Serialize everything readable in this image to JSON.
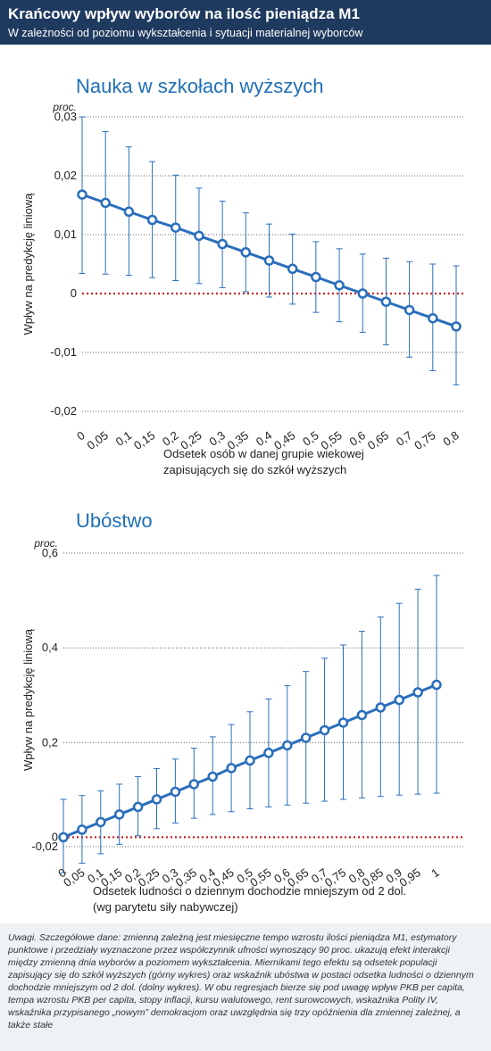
{
  "header": {
    "title": "Krańcowy wpływ wyborów na ilość pieniądza M1",
    "subtitle": "W zależności od poziomu wykształcenia i sytuacji materialnej wyborców"
  },
  "colors": {
    "header_bg": "#1f3a5f",
    "series": "#2a6ebb",
    "marker_fill": "#ffffff",
    "zero_line": "#cc2222",
    "grid": "#333333",
    "note_bg": "#eef2f5"
  },
  "chart_data": [
    {
      "type": "line",
      "title": "Nauka w szkołach wyższych",
      "unit_label": "proc.",
      "ylabel": "Wpływ na predykcję liniową",
      "xlabel_line1": "Odsetek osób w danej grupie wiekowej",
      "xlabel_line2": "zapisujących się do szkół wyższych",
      "ylim": [
        -0.02,
        0.03
      ],
      "yticks": [
        0.03,
        0.02,
        0.01,
        0,
        -0.01,
        -0.02
      ],
      "ytick_labels": [
        "0,03",
        "0,02",
        "0,01",
        "0",
        "-0,01",
        "-0,02"
      ],
      "xlim": [
        0,
        0.8
      ],
      "xticks": [
        0,
        0.05,
        0.1,
        0.15,
        0.2,
        0.25,
        0.3,
        0.35,
        0.4,
        0.45,
        0.5,
        0.55,
        0.6,
        0.65,
        0.7,
        0.75,
        0.8
      ],
      "xtick_labels": [
        "0",
        "0,05",
        "0,1",
        "0,15",
        "0,2",
        "0,25",
        "0,3",
        "0,35",
        "0,4",
        "0,45",
        "0,5",
        "0,55",
        "0,6",
        "0,65",
        "0,7",
        "0,75",
        "0,8"
      ],
      "x": [
        0,
        0.05,
        0.1,
        0.15,
        0.2,
        0.25,
        0.3,
        0.35,
        0.4,
        0.45,
        0.5,
        0.55,
        0.6,
        0.65,
        0.7,
        0.75,
        0.8
      ],
      "y": [
        0.0168,
        0.0154,
        0.0139,
        0.0125,
        0.0112,
        0.0098,
        0.0084,
        0.007,
        0.0056,
        0.0042,
        0.0028,
        0.0014,
        0.0,
        -0.0014,
        -0.0028,
        -0.0042,
        -0.0056
      ],
      "lower": [
        0.0034,
        0.0033,
        0.0031,
        0.0027,
        0.0022,
        0.0017,
        0.001,
        0.0003,
        -0.0006,
        -0.0018,
        -0.0032,
        -0.0048,
        -0.0066,
        -0.0087,
        -0.0108,
        -0.0131,
        -0.0155
      ],
      "upper": [
        0.03,
        0.0275,
        0.0249,
        0.0224,
        0.0201,
        0.0179,
        0.0157,
        0.0137,
        0.0118,
        0.0101,
        0.0088,
        0.0076,
        0.0067,
        0.006,
        0.0054,
        0.005,
        0.0047
      ],
      "grid": true,
      "zero_line": true
    },
    {
      "type": "line",
      "title": "Ubóstwo",
      "unit_label": "proc.",
      "ylabel": "Wpływ na predykcję liniową",
      "xlabel_line1": "Odsetek ludności o dziennym dochodzie mniejszym od 2 dol.",
      "xlabel_line2": "(wg parytetu siły nabywczej)",
      "ylim": [
        -0.02,
        0.6
      ],
      "yticks": [
        0.6,
        0.4,
        0.2,
        0,
        -0.02
      ],
      "ytick_labels": [
        "0,6",
        "0,4",
        "0,2",
        "0",
        "-0,02"
      ],
      "xlim": [
        0,
        1
      ],
      "xticks": [
        0,
        0.05,
        0.1,
        0.15,
        0.2,
        0.25,
        0.3,
        0.35,
        0.4,
        0.45,
        0.5,
        0.55,
        0.6,
        0.65,
        0.7,
        0.75,
        0.8,
        0.85,
        0.9,
        0.95,
        1
      ],
      "xtick_labels": [
        "0",
        "0,05",
        "0,1",
        "0,15",
        "0,2",
        "0,25",
        "0,3",
        "0,35",
        "0,4",
        "0,45",
        "0,5",
        "0,55",
        "0,6",
        "0,65",
        "0,7",
        "0,75",
        "0,8",
        "0,85",
        "0,9",
        "0,95",
        "1"
      ],
      "x": [
        0,
        0.05,
        0.1,
        0.15,
        0.2,
        0.25,
        0.3,
        0.35,
        0.4,
        0.45,
        0.5,
        0.55,
        0.6,
        0.65,
        0.7,
        0.75,
        0.8,
        0.85,
        0.9,
        0.95,
        1
      ],
      "y": [
        0.0,
        0.016,
        0.032,
        0.048,
        0.064,
        0.08,
        0.096,
        0.112,
        0.128,
        0.146,
        0.162,
        0.178,
        0.194,
        0.21,
        0.226,
        0.242,
        0.258,
        0.274,
        0.29,
        0.306,
        0.322
      ],
      "lower": [
        -0.075,
        -0.055,
        -0.035,
        -0.015,
        0.003,
        0.018,
        0.03,
        0.04,
        0.048,
        0.054,
        0.06,
        0.064,
        0.068,
        0.072,
        0.076,
        0.08,
        0.083,
        0.086,
        0.089,
        0.091,
        0.093
      ],
      "upper": [
        0.08,
        0.088,
        0.098,
        0.112,
        0.128,
        0.145,
        0.165,
        0.188,
        0.212,
        0.238,
        0.265,
        0.292,
        0.32,
        0.35,
        0.378,
        0.406,
        0.435,
        0.465,
        0.494,
        0.524,
        0.553
      ],
      "grid": true,
      "zero_line": true
    }
  ],
  "note": "Uwagi. Szczegółowe dane: zmienną zależną jest miesięczne tempo wzrostu ilości pieniądza M1, estymatory punktowe i przedziały wyznaczone przez współczynnik ufności wynoszący 90 proc. ukazują efekt interakcji między zmienną dnia wyborów a poziomem wykształcenia. Miernikami tego efektu są odsetek populacji zapisujący się do szkół wyższych (górny wykres) oraz wskaźnik ubóstwa w postaci odsetka ludności o dziennym dochodzie mniejszym od 2 dol. (dolny wykres). W obu regresjach bierze się pod uwagę wpływ PKB per capita, tempa wzrostu PKB per capita, stopy inflacji, kursu walutowego, rent surowcowych, wskaźnika Polity IV, wskaźnika przypisanego „nowym” demokracjom oraz uwzględnia się trzy opóźnienia dla zmiennej zależnej, a także stałe"
}
